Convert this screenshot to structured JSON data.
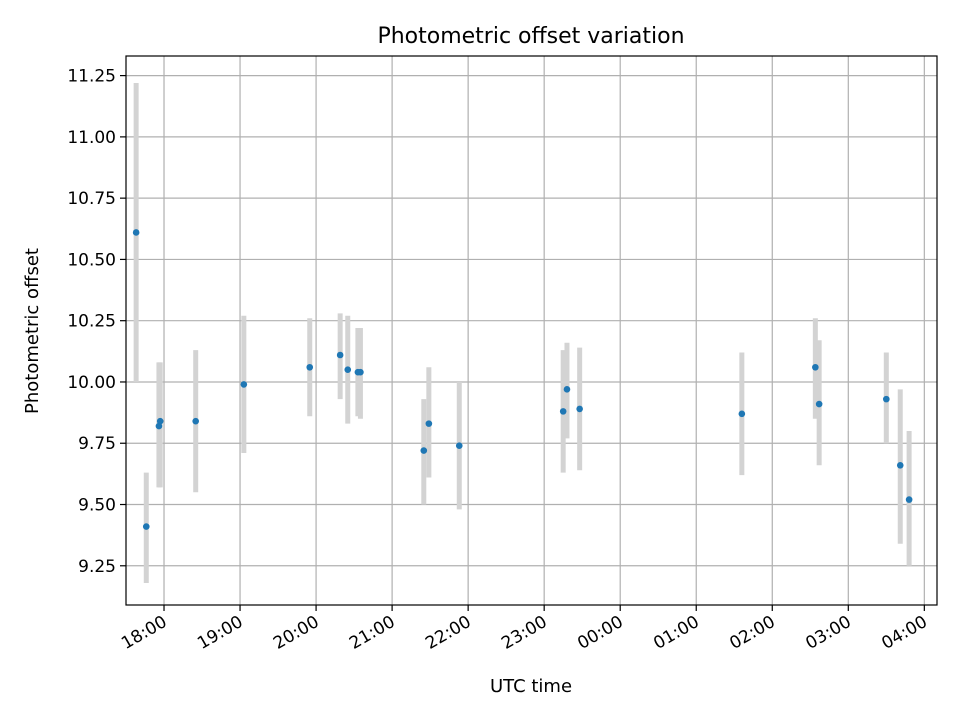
{
  "chart_data": {
    "type": "scatter",
    "title": "Photometric offset variation",
    "xlabel": "UTC time",
    "ylabel": "Photometric offset",
    "x_tick_labels": [
      "18:00",
      "19:00",
      "20:00",
      "21:00",
      "22:00",
      "23:00",
      "00:00",
      "01:00",
      "02:00",
      "03:00",
      "04:00"
    ],
    "y_ticks": [
      9.25,
      9.5,
      9.75,
      10.0,
      10.25,
      10.5,
      10.75,
      11.0,
      11.25
    ],
    "y_tick_labels": [
      "9.25",
      "9.50",
      "9.75",
      "10.00",
      "10.25",
      "10.50",
      "10.75",
      "11.00",
      "11.25"
    ],
    "xlim": [
      "17:30",
      "04:10"
    ],
    "ylim": [
      9.09,
      11.33
    ],
    "grid": true,
    "point_color": "#1f77b4",
    "errorbar_color": "#d3d3d3",
    "points": [
      {
        "time": "17:38",
        "y": 10.61,
        "ylow": 10.0,
        "yhigh": 11.22
      },
      {
        "time": "17:46",
        "y": 9.41,
        "ylow": 9.18,
        "yhigh": 9.63
      },
      {
        "time": "17:56",
        "y": 9.82,
        "ylow": 9.57,
        "yhigh": 10.08
      },
      {
        "time": "17:57",
        "y": 9.84,
        "ylow": 9.57,
        "yhigh": 10.08
      },
      {
        "time": "18:25",
        "y": 9.84,
        "ylow": 9.55,
        "yhigh": 10.13
      },
      {
        "time": "19:03",
        "y": 9.99,
        "ylow": 9.71,
        "yhigh": 10.27
      },
      {
        "time": "19:55",
        "y": 10.06,
        "ylow": 9.86,
        "yhigh": 10.26
      },
      {
        "time": "20:19",
        "y": 10.11,
        "ylow": 9.93,
        "yhigh": 10.28
      },
      {
        "time": "20:25",
        "y": 10.05,
        "ylow": 9.83,
        "yhigh": 10.27
      },
      {
        "time": "20:33",
        "y": 10.04,
        "ylow": 9.86,
        "yhigh": 10.22
      },
      {
        "time": "20:35",
        "y": 10.04,
        "ylow": 9.85,
        "yhigh": 10.22
      },
      {
        "time": "21:25",
        "y": 9.72,
        "ylow": 9.5,
        "yhigh": 9.93
      },
      {
        "time": "21:29",
        "y": 9.83,
        "ylow": 9.61,
        "yhigh": 10.06
      },
      {
        "time": "21:53",
        "y": 9.74,
        "ylow": 9.48,
        "yhigh": 10.0
      },
      {
        "time": "23:15",
        "y": 9.88,
        "ylow": 9.63,
        "yhigh": 10.13
      },
      {
        "time": "23:18",
        "y": 9.97,
        "ylow": 9.77,
        "yhigh": 10.16
      },
      {
        "time": "23:28",
        "y": 9.89,
        "ylow": 9.64,
        "yhigh": 10.14
      },
      {
        "time": "01:36",
        "y": 9.87,
        "ylow": 9.62,
        "yhigh": 10.12
      },
      {
        "time": "02:34",
        "y": 10.06,
        "ylow": 9.85,
        "yhigh": 10.26
      },
      {
        "time": "02:37",
        "y": 9.91,
        "ylow": 9.66,
        "yhigh": 10.17
      },
      {
        "time": "03:30",
        "y": 9.93,
        "ylow": 9.75,
        "yhigh": 10.12
      },
      {
        "time": "03:41",
        "y": 9.66,
        "ylow": 9.34,
        "yhigh": 9.97
      },
      {
        "time": "03:48",
        "y": 9.52,
        "ylow": 9.25,
        "yhigh": 9.8
      }
    ]
  }
}
